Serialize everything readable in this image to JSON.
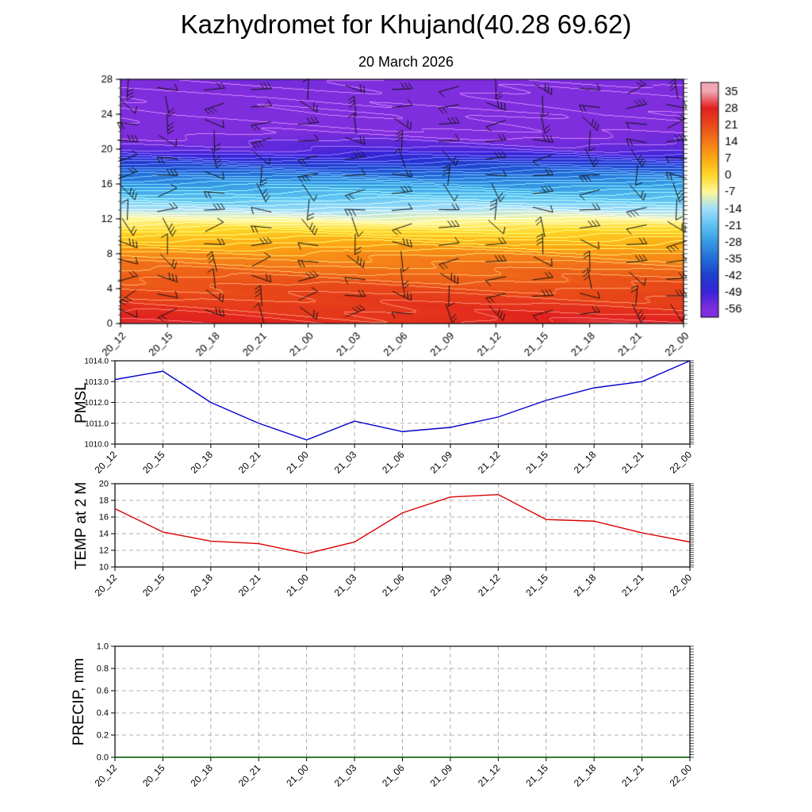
{
  "title": "Kazhydromet for Khujand(40.28 69.62)",
  "subtitle": "20 March 2026",
  "time_labels": [
    "20_12",
    "20_15",
    "20_18",
    "20_21",
    "21_00",
    "21_03",
    "21_06",
    "21_09",
    "21_12",
    "21_15",
    "21_18",
    "21_21",
    "22_00"
  ],
  "chart_data": [
    {
      "type": "heatmap",
      "name": "temperature-height-cross-section",
      "x": [
        "20_12",
        "20_15",
        "20_18",
        "20_21",
        "21_00",
        "21_03",
        "21_06",
        "21_09",
        "21_12",
        "21_15",
        "21_18",
        "21_21",
        "22_00"
      ],
      "ylim": [
        0,
        28
      ],
      "yticks": [
        0,
        4,
        8,
        12,
        16,
        20,
        24,
        28
      ],
      "colorbar_ticks": [
        35,
        28,
        21,
        14,
        7,
        0,
        -7,
        -14,
        -21,
        -28,
        -35,
        -42,
        -49,
        -56
      ],
      "color_stops": [
        [
          35,
          [
            242,
            167,
            180
          ]
        ],
        [
          28,
          [
            224,
            32,
            32
          ]
        ],
        [
          21,
          [
            232,
            72,
            24
          ]
        ],
        [
          14,
          [
            243,
            120,
            24
          ]
        ],
        [
          7,
          [
            252,
            168,
            20
          ]
        ],
        [
          0,
          [
            255,
            214,
            40
          ]
        ],
        [
          -7,
          [
            255,
            248,
            150
          ]
        ],
        [
          -14,
          [
            165,
            224,
            250
          ]
        ],
        [
          -21,
          [
            95,
            195,
            242
          ]
        ],
        [
          -28,
          [
            55,
            155,
            228
          ]
        ],
        [
          -35,
          [
            35,
            110,
            215
          ]
        ],
        [
          -42,
          [
            30,
            64,
            205
          ]
        ],
        [
          -49,
          [
            56,
            36,
            216
          ]
        ],
        [
          -56,
          [
            126,
            46,
            220
          ]
        ]
      ],
      "profile_heights": [
        0,
        2,
        4,
        6,
        8,
        10,
        11,
        12,
        13,
        14,
        15,
        16,
        17,
        18,
        19,
        20,
        22,
        24,
        26,
        28
      ],
      "profile_temps": [
        27,
        24,
        20.5,
        16,
        11,
        3,
        -2,
        -8,
        -14,
        -19,
        -24,
        -29,
        -35,
        -41,
        -47,
        -52,
        -57,
        -59,
        -58,
        -56
      ],
      "wind_barb_grid": {
        "columns": 13,
        "rows": 14
      }
    },
    {
      "type": "line",
      "name": "pmsl",
      "ylabel": "PMSL",
      "ylim": [
        1010.0,
        1014.0
      ],
      "yticks": [
        "1010.0",
        "1011.0",
        "1012.0",
        "1013.0",
        "1014.0"
      ],
      "color": "#0000cc",
      "values": [
        1013.1,
        1013.5,
        1012.0,
        1011.0,
        1010.2,
        1011.1,
        1010.6,
        1010.8,
        1011.3,
        1012.1,
        1012.7,
        1013.0,
        1014.0
      ]
    },
    {
      "type": "line",
      "name": "temp-2m",
      "ylabel": "TEMP at 2 M",
      "ylim": [
        10,
        20
      ],
      "yticks": [
        "10",
        "12",
        "14",
        "16",
        "18",
        "20"
      ],
      "color": "#dd0000",
      "values": [
        17.0,
        14.2,
        13.1,
        12.8,
        11.6,
        13.0,
        16.5,
        18.4,
        18.7,
        15.7,
        15.5,
        14.1,
        13.0
      ]
    },
    {
      "type": "line",
      "name": "precip",
      "ylabel": "PRECIP, mm",
      "ylim": [
        0.0,
        1.0
      ],
      "yticks": [
        "0.0",
        "0.2",
        "0.4",
        "0.6",
        "0.8",
        "1.0"
      ],
      "color": "#006400",
      "values": [
        0,
        0,
        0,
        0,
        0,
        0,
        0,
        0,
        0,
        0,
        0,
        0,
        0
      ]
    }
  ]
}
